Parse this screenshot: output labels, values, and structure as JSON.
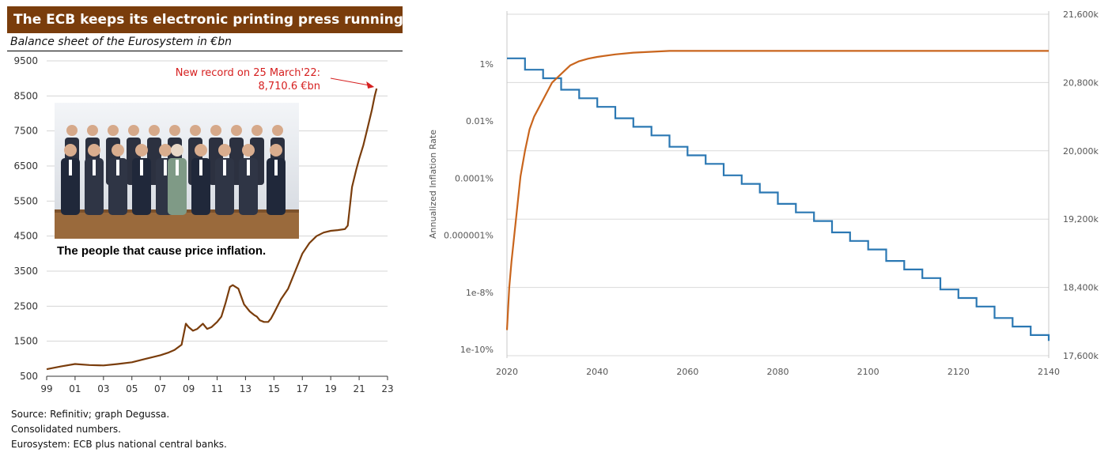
{
  "left_panel": {
    "title": "The ECB keeps its electronic printing press running …",
    "subtitle": "Balance sheet of the Eurosystem in €bn",
    "photo_caption": "The people that cause price inflation.",
    "source_lines": [
      "Source: Refinitiv; graph Degussa.",
      "Consolidated numbers.",
      "Eurosystem: ECB plus national central banks."
    ]
  },
  "chart_data": [
    {
      "type": "line",
      "title": "The ECB keeps its electronic printing press running …",
      "subtitle": "Balance sheet of the Eurosystem in €bn",
      "xlabel": "",
      "ylabel": "",
      "x_tick_labels": [
        "99",
        "01",
        "03",
        "05",
        "07",
        "09",
        "11",
        "13",
        "15",
        "17",
        "19",
        "21",
        "23"
      ],
      "y_tick_labels": [
        "500",
        "1500",
        "2500",
        "3500",
        "4500",
        "5500",
        "6500",
        "7500",
        "8500",
        "9500"
      ],
      "xlim": [
        1999,
        2023
      ],
      "ylim": [
        500,
        9500
      ],
      "grid": "horizontal",
      "annotation": {
        "text_line1": "New record on 25 March'22:",
        "text_line2": "8,710.6 €bn",
        "x": 2022.23,
        "y": 8710.6,
        "color": "#d62020"
      },
      "series": [
        {
          "color": "#7a3d0c",
          "x": [
            1999.0,
            2000.0,
            2001.0,
            2002.0,
            2003.0,
            2004.0,
            2005.0,
            2006.0,
            2007.0,
            2007.6,
            2008.0,
            2008.5,
            2008.8,
            2009.0,
            2009.3,
            2009.6,
            2010.0,
            2010.3,
            2010.6,
            2011.0,
            2011.3,
            2011.6,
            2011.9,
            2012.1,
            2012.3,
            2012.5,
            2012.9,
            2013.3,
            2013.6,
            2013.8,
            2014.0,
            2014.3,
            2014.6,
            2014.8,
            2015.0,
            2015.5,
            2016.0,
            2016.5,
            2017.0,
            2017.5,
            2018.0,
            2018.5,
            2019.0,
            2019.5,
            2020.0,
            2020.2,
            2020.5,
            2020.8,
            2021.0,
            2021.3,
            2021.6,
            2021.9,
            2022.1,
            2022.23
          ],
          "values": [
            700,
            780,
            850,
            820,
            810,
            850,
            900,
            1000,
            1100,
            1180,
            1250,
            1400,
            2000,
            1900,
            1800,
            1850,
            2000,
            1850,
            1900,
            2050,
            2200,
            2600,
            3050,
            3100,
            3050,
            3000,
            2550,
            2350,
            2250,
            2200,
            2100,
            2050,
            2050,
            2150,
            2300,
            2700,
            3000,
            3500,
            4000,
            4300,
            4500,
            4600,
            4650,
            4670,
            4700,
            4800,
            5900,
            6400,
            6700,
            7100,
            7600,
            8100,
            8500,
            8710.6
          ]
        }
      ]
    },
    {
      "type": "line",
      "title": "",
      "xlabel": "",
      "ylabel": "Annualized Inflation Rate",
      "x_tick_labels": [
        "2020",
        "2040",
        "2060",
        "2080",
        "2100",
        "2120",
        "2140"
      ],
      "xlim": [
        2020,
        2140
      ],
      "y_left": {
        "scale": "log",
        "tick_labels": [
          "1%",
          "0.01%",
          "0.0001%",
          "0.000001%",
          "1e-8%",
          "1e-10%"
        ],
        "exponents": [
          0,
          -2,
          -4,
          -6,
          -8,
          -10
        ],
        "lim_exponent": [
          -10.1,
          0.3
        ]
      },
      "y_right": {
        "tick_labels": [
          "21,600k",
          "20,800k",
          "20,000k",
          "19,200k",
          "18,400k",
          "17,600k"
        ],
        "ticks_k": [
          21600,
          20800,
          20000,
          19200,
          18400,
          17600
        ],
        "ylim_k": [
          17600,
          21600
        ]
      },
      "grid": "horizontal",
      "series": [
        {
          "name": "",
          "axis": "left",
          "color": "#2b78b3",
          "step": true,
          "x": [
            2020,
            2024,
            2028,
            2032,
            2036,
            2040,
            2044,
            2048,
            2052,
            2056,
            2060,
            2064,
            2068,
            2072,
            2076,
            2080,
            2084,
            2088,
            2092,
            2096,
            2100,
            2104,
            2108,
            2112,
            2116,
            2120,
            2124,
            2128,
            2132,
            2136,
            2140
          ],
          "values_exponent": [
            0.2,
            -0.2,
            -0.5,
            -0.9,
            -1.2,
            -1.5,
            -1.9,
            -2.2,
            -2.5,
            -2.9,
            -3.2,
            -3.5,
            -3.9,
            -4.2,
            -4.5,
            -4.9,
            -5.2,
            -5.5,
            -5.9,
            -6.2,
            -6.5,
            -6.9,
            -7.2,
            -7.5,
            -7.9,
            -8.2,
            -8.5,
            -8.9,
            -9.2,
            -9.5,
            -9.7
          ]
        },
        {
          "name": "",
          "axis": "right",
          "color": "#c9651d",
          "step": false,
          "x": [
            2020,
            2020.5,
            2021,
            2022,
            2023,
            2024,
            2025,
            2026,
            2027,
            2028,
            2030,
            2032,
            2034,
            2036,
            2038,
            2040,
            2044,
            2048,
            2052,
            2056,
            2060,
            2070,
            2080,
            2100,
            2120,
            2140
          ],
          "values_k": [
            17900,
            18400,
            18700,
            19200,
            19700,
            20000,
            20250,
            20400,
            20500,
            20600,
            20800,
            20900,
            21000,
            21050,
            21080,
            21100,
            21130,
            21150,
            21160,
            21170,
            21170,
            21170,
            21170,
            21170,
            21170,
            21170
          ]
        }
      ]
    }
  ]
}
